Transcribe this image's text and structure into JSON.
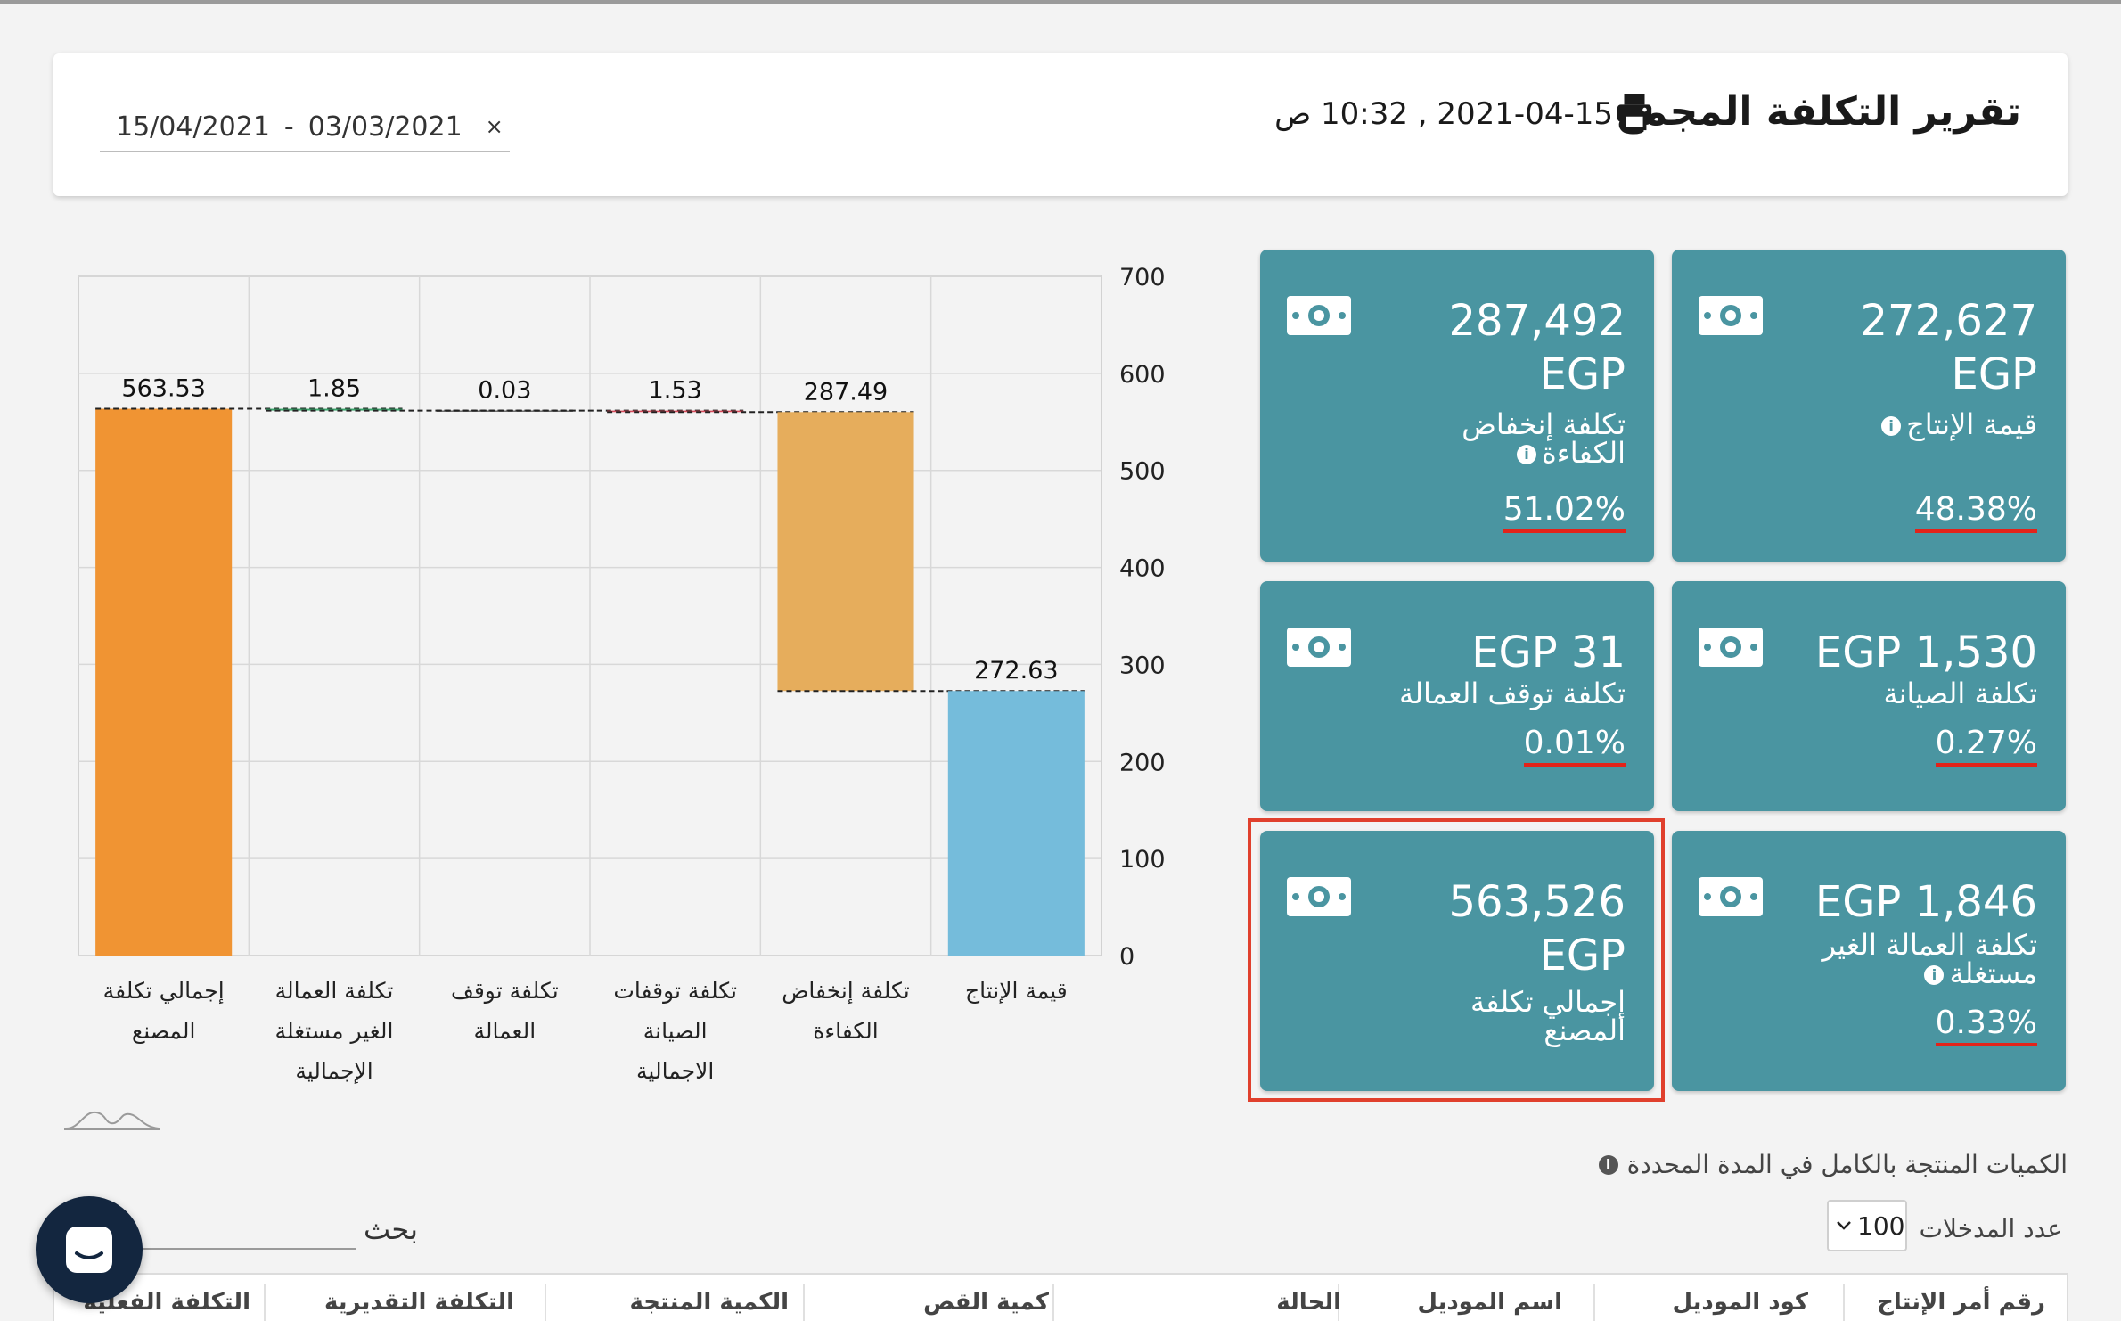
{
  "header": {
    "title": "تقرير التكلفة المجمع",
    "datetime": "2021-04-15 , 10:32 ص",
    "date_from": "15/04/2021",
    "date_separator": "-",
    "date_to": "03/03/2021",
    "clear_glyph": "×",
    "print_icon": "printer-icon"
  },
  "chart_data": {
    "type": "bar",
    "subtype": "waterfall",
    "categories": [
      [
        "إجمالي تكلفة",
        "المصنع"
      ],
      [
        "تكلفة العمالة",
        "الغير مستغلة",
        "الإجمالية"
      ],
      [
        "تكلفة توقف",
        "العمالة"
      ],
      [
        "تكلفة توقفات",
        "الصيانة",
        "الاجمالية"
      ],
      [
        "تكلفة إنخفاض",
        "الكفاءة"
      ],
      [
        "قيمة الإنتاج"
      ]
    ],
    "values": [
      563.53,
      1.85,
      0.03,
      1.53,
      287.49,
      272.63
    ],
    "value_labels": [
      "563.53",
      "1.85",
      "0.03",
      "1.53",
      "287.49",
      "272.63"
    ],
    "bar_ranges": [
      [
        0,
        563.53
      ],
      [
        561.68,
        563.53
      ],
      [
        561.65,
        561.68
      ],
      [
        560.12,
        561.65
      ],
      [
        272.63,
        560.12
      ],
      [
        0,
        272.63
      ]
    ],
    "colors": [
      "#f09433",
      "#3aa56b",
      "#444444",
      "#d94b5b",
      "#e6ad5c",
      "#75bcdb"
    ],
    "ylim": [
      0,
      700
    ],
    "yticks": [
      "0",
      "100",
      "200",
      "300",
      "400",
      "500",
      "600",
      "700"
    ],
    "y_axis_side": "right",
    "grid": true,
    "title": "",
    "xlabel": "",
    "ylabel": ""
  },
  "cards": [
    {
      "name": "production-value",
      "value_line1": "272,627",
      "value_line2": "EGP",
      "label_lines": [
        "قيمة الإنتاج"
      ],
      "info": true,
      "percent": "48.38%"
    },
    {
      "name": "efficiency-drop-cost",
      "value_line1": "287,492",
      "value_line2": "EGP",
      "label_lines": [
        "تكلفة إنخفاض",
        "الكفاءة"
      ],
      "info": true,
      "percent": "51.02%"
    },
    {
      "name": "maintenance-cost",
      "value_line1": "EGP 1,530",
      "value_line2": "",
      "label_lines": [
        "تكلفة الصيانة"
      ],
      "info": false,
      "percent": "0.27%"
    },
    {
      "name": "labor-stoppage-cost",
      "value_line1": "EGP 31",
      "value_line2": "",
      "label_lines": [
        "تكلفة توقف العمالة"
      ],
      "info": false,
      "percent": "0.01%"
    },
    {
      "name": "unused-labor-cost",
      "value_line1": "EGP 1,846",
      "value_line2": "",
      "label_lines": [
        "تكلفة العمالة الغير",
        "مستغلة"
      ],
      "info": true,
      "percent": "0.33%"
    },
    {
      "name": "total-factory-cost",
      "value_line1": "563,526",
      "value_line2": "EGP",
      "label_lines": [
        "إجمالي تكلفة",
        "المصنع"
      ],
      "info": false,
      "percent": ""
    }
  ],
  "quantities_note": "الكميات المنتجة بالكامل في المدة المحددة",
  "table": {
    "entries_label": "عدد المدخلات",
    "entries_value": "100",
    "search_label": "بحث",
    "columns": [
      "رقم أمر الإنتاج",
      "كود الموديل",
      "اسم الموديل",
      "الحالة",
      "كمية القص",
      "الكمية المنتجة",
      "التكلفة التقديرية",
      "التكلفة الفعلية"
    ]
  },
  "colors": {
    "card_bg": "#4a95a1",
    "underline": "#e2231a",
    "highlight": "#e0402d",
    "chat_bg": "#13263f"
  }
}
